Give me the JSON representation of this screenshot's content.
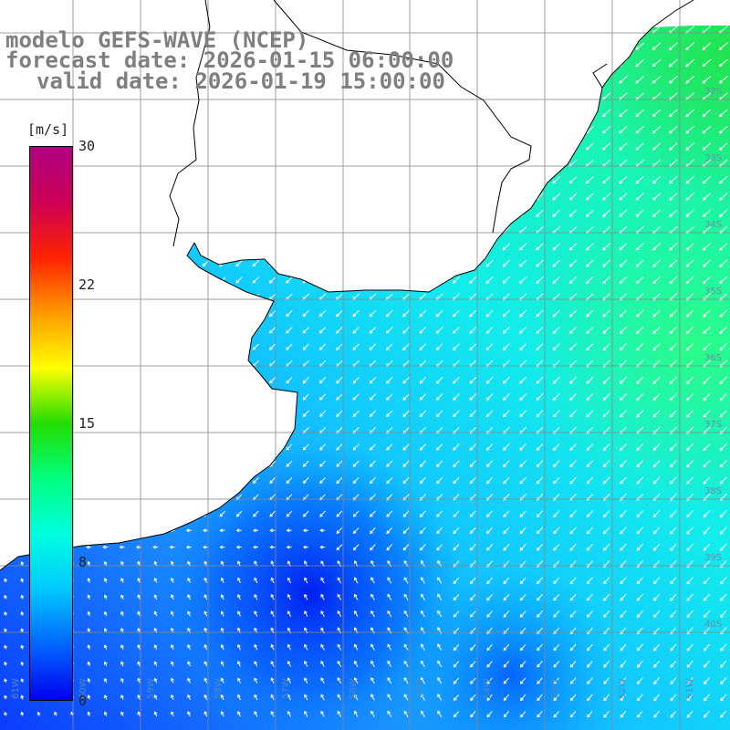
{
  "title": {
    "model": "modelo GEFS-WAVE (NCEP)",
    "forecast": "forecast date: 2026-01-15 06:00:00",
    "valid": "valid date: 2026-01-19 15:00:00"
  },
  "colorbar": {
    "unit": "[m/s]",
    "ticks": [
      "30",
      "22",
      "15",
      "8",
      "0"
    ],
    "range": [
      0,
      30
    ],
    "colors": [
      "#0000ee",
      "#0066ff",
      "#00c8ff",
      "#00ffe0",
      "#00ff80",
      "#22dd00",
      "#ffff00",
      "#ff9900",
      "#ff2200",
      "#cc0055",
      "#b00080"
    ]
  },
  "lat_labels": [
    "32S",
    "33S",
    "34S",
    "35S",
    "36S",
    "37S",
    "38S",
    "39S",
    "40S"
  ],
  "lon_labels": [
    "61W",
    "60W",
    "59W",
    "58W",
    "57W",
    "56W",
    "55W",
    "54W",
    "53W",
    "52W",
    "51W"
  ],
  "colors": {
    "land": "#ffffff",
    "coast": "#000000",
    "grid": "#888888",
    "vector": "#ffffff",
    "title": "#7f7f7f"
  },
  "map": {
    "wind_field": "wind speed over ocean with direction arrows",
    "speed_field_description": "calm blue south-west region rising to green/cyan in north-east"
  }
}
